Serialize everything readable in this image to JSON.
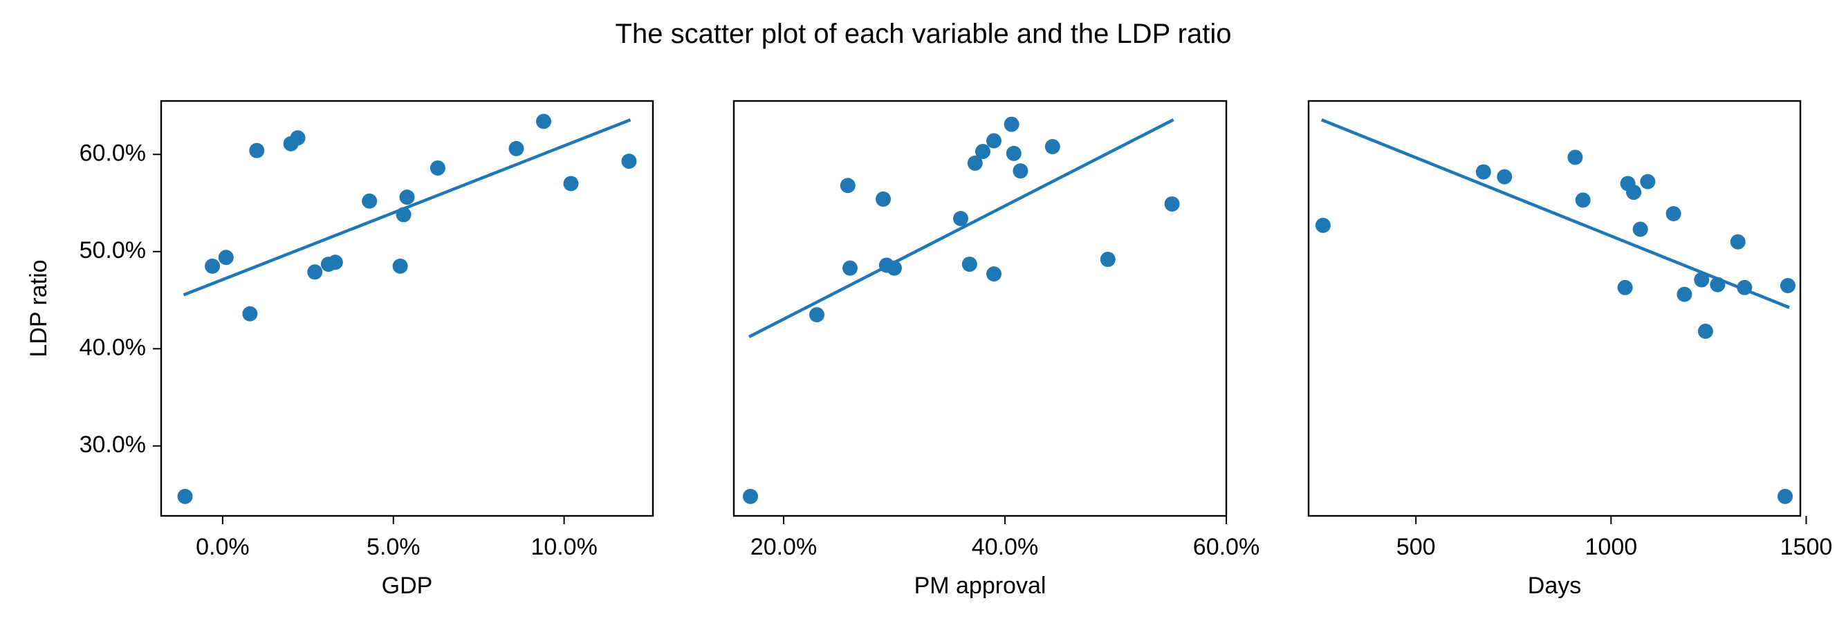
{
  "colors": {
    "series": "#1f77b4",
    "axis": "#000000",
    "background": "#ffffff"
  },
  "chart_data": {
    "type": "scatter",
    "title": "The scatter plot of each variable and the LDP ratio",
    "shared_ylabel": "LDP ratio",
    "shared_ylim": [
      0.228,
      0.655
    ],
    "shared_yticks": [
      0.3,
      0.4,
      0.5,
      0.6
    ],
    "shared_yticklabels": [
      "30.0%",
      "40.0%",
      "50.0%",
      "60.0%"
    ],
    "grid": false,
    "panels": [
      {
        "xlabel": "GDP",
        "xlim": [
          -0.018,
          0.126
        ],
        "xticks": [
          0.0,
          0.05,
          0.1
        ],
        "xticklabels": [
          "0.0%",
          "5.0%",
          "10.0%"
        ],
        "points": [
          {
            "x": -0.011,
            "y": 0.248
          },
          {
            "x": -0.003,
            "y": 0.485
          },
          {
            "x": 0.001,
            "y": 0.494
          },
          {
            "x": 0.008,
            "y": 0.436
          },
          {
            "x": 0.01,
            "y": 0.604
          },
          {
            "x": 0.02,
            "y": 0.611
          },
          {
            "x": 0.022,
            "y": 0.617
          },
          {
            "x": 0.027,
            "y": 0.479
          },
          {
            "x": 0.031,
            "y": 0.487
          },
          {
            "x": 0.033,
            "y": 0.489
          },
          {
            "x": 0.043,
            "y": 0.552
          },
          {
            "x": 0.052,
            "y": 0.485
          },
          {
            "x": 0.053,
            "y": 0.538
          },
          {
            "x": 0.054,
            "y": 0.556
          },
          {
            "x": 0.063,
            "y": 0.586
          },
          {
            "x": 0.086,
            "y": 0.606
          },
          {
            "x": 0.094,
            "y": 0.634
          },
          {
            "x": 0.102,
            "y": 0.57
          },
          {
            "x": 0.119,
            "y": 0.593
          }
        ],
        "fit_line": [
          {
            "x": -0.011,
            "y": 0.456
          },
          {
            "x": 0.119,
            "y": 0.635
          }
        ]
      },
      {
        "xlabel": "PM approval",
        "xlim": [
          0.155,
          0.6
        ],
        "xticks": [
          0.2,
          0.4,
          0.6
        ],
        "xticklabels": [
          "20.0%",
          "40.0%",
          "60.0%"
        ],
        "points": [
          {
            "x": 0.17,
            "y": 0.248
          },
          {
            "x": 0.23,
            "y": 0.435
          },
          {
            "x": 0.258,
            "y": 0.568
          },
          {
            "x": 0.26,
            "y": 0.483
          },
          {
            "x": 0.29,
            "y": 0.554
          },
          {
            "x": 0.293,
            "y": 0.486
          },
          {
            "x": 0.3,
            "y": 0.483
          },
          {
            "x": 0.36,
            "y": 0.534
          },
          {
            "x": 0.368,
            "y": 0.487
          },
          {
            "x": 0.373,
            "y": 0.591
          },
          {
            "x": 0.38,
            "y": 0.603
          },
          {
            "x": 0.39,
            "y": 0.614
          },
          {
            "x": 0.39,
            "y": 0.477
          },
          {
            "x": 0.406,
            "y": 0.631
          },
          {
            "x": 0.408,
            "y": 0.601
          },
          {
            "x": 0.414,
            "y": 0.583
          },
          {
            "x": 0.443,
            "y": 0.608
          },
          {
            "x": 0.493,
            "y": 0.492
          },
          {
            "x": 0.551,
            "y": 0.549
          }
        ],
        "fit_line": [
          {
            "x": 0.17,
            "y": 0.413
          },
          {
            "x": 0.551,
            "y": 0.635
          }
        ]
      },
      {
        "xlabel": "Days",
        "xlim": [
          225,
          1485
        ],
        "xticks": [
          500,
          1000,
          1500
        ],
        "xticklabels": [
          "500",
          "1000",
          "1500"
        ],
        "points": [
          {
            "x": 262,
            "y": 0.527
          },
          {
            "x": 673,
            "y": 0.582
          },
          {
            "x": 727,
            "y": 0.577
          },
          {
            "x": 908,
            "y": 0.597
          },
          {
            "x": 928,
            "y": 0.553
          },
          {
            "x": 1036,
            "y": 0.463
          },
          {
            "x": 1043,
            "y": 0.57
          },
          {
            "x": 1058,
            "y": 0.561
          },
          {
            "x": 1075,
            "y": 0.523
          },
          {
            "x": 1094,
            "y": 0.572
          },
          {
            "x": 1160,
            "y": 0.539
          },
          {
            "x": 1188,
            "y": 0.456
          },
          {
            "x": 1232,
            "y": 0.471
          },
          {
            "x": 1242,
            "y": 0.418
          },
          {
            "x": 1273,
            "y": 0.466
          },
          {
            "x": 1325,
            "y": 0.51
          },
          {
            "x": 1342,
            "y": 0.463
          },
          {
            "x": 1446,
            "y": 0.248
          },
          {
            "x": 1453,
            "y": 0.465
          }
        ],
        "fit_line": [
          {
            "x": 262,
            "y": 0.635
          },
          {
            "x": 1453,
            "y": 0.443
          }
        ]
      }
    ]
  }
}
